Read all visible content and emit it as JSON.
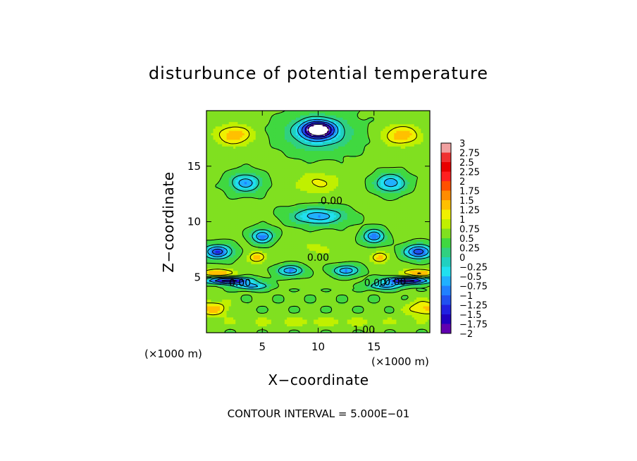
{
  "chart_data": {
    "type": "heatmap",
    "title": "disturbunce of potential temperature",
    "xlabel": "X−coordinate",
    "ylabel": "Z−coordinate",
    "x_unit": "(×1000 m)",
    "x_unit_right": "(×1000 m)",
    "y_unit": "(×1000 m)",
    "xlim": [
      0,
      20
    ],
    "ylim": [
      0,
      20
    ],
    "xticks": [
      5,
      10,
      15
    ],
    "yticks": [
      5,
      10,
      15
    ],
    "footer": "CONTOUR INTERVAL = 5.000E−01",
    "contour_labels": [
      {
        "text": "0.00",
        "x": 11.2,
        "z": 11.9
      },
      {
        "text": "0.00",
        "x": 10.0,
        "z": 6.8
      },
      {
        "text": "0.00",
        "x": 3.0,
        "z": 4.5
      },
      {
        "text": "0.00",
        "x": 15.1,
        "z": 4.5
      },
      {
        "text": "0.00",
        "x": 16.9,
        "z": 4.6
      },
      {
        "text": "1.00",
        "x": 14.1,
        "z": 0.3
      }
    ],
    "colorbar": {
      "tick_labels": [
        "3",
        "2.75",
        "2.5",
        "2.25",
        "2",
        "1.75",
        "1.5",
        "1.25",
        "1",
        "0.75",
        "0.5",
        "0.25",
        "0",
        "−0.25",
        "−0.5",
        "−0.75",
        "−1",
        "−1.25",
        "−1.5",
        "−1.75",
        "−2"
      ],
      "levels": [
        3,
        2.75,
        2.5,
        2.25,
        2,
        1.75,
        1.5,
        1.25,
        1,
        0.75,
        0.5,
        0.25,
        0,
        -0.25,
        -0.5,
        -0.75,
        -1,
        -1.25,
        -1.5,
        -1.75,
        -2
      ],
      "colors": [
        "#f0a0a0",
        "#f03030",
        "#e80000",
        "#ff2020",
        "#ff5000",
        "#ff8c00",
        "#ffc000",
        "#f0f000",
        "#c0f000",
        "#80e020",
        "#40d840",
        "#30d080",
        "#20d0c0",
        "#20e0f0",
        "#20b0ff",
        "#2080ff",
        "#2050f0",
        "#2020e0",
        "#2000c0",
        "#6000b0"
      ]
    },
    "grid": false
  }
}
